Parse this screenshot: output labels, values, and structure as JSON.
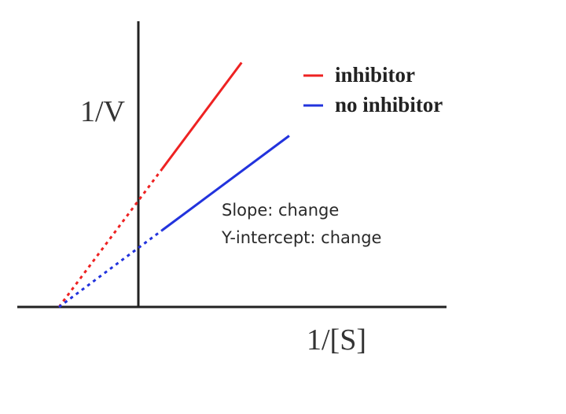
{
  "chart_data": {
    "type": "line",
    "title": "",
    "xlabel": "1/[S]",
    "ylabel": "1/V",
    "x_intercept": -1.0,
    "xlim": [
      -1.5,
      3.9
    ],
    "ylim": [
      0,
      3.6
    ],
    "grid": false,
    "legend_position": "top-right",
    "series": [
      {
        "name": "inhibitor",
        "color": "#ee2222",
        "y_intercept": 1.35,
        "slope": 1.35,
        "solid_x": [
          0.3,
          1.3
        ],
        "dotted_x": [
          -1.0,
          0.3
        ]
      },
      {
        "name": "no inhibitor",
        "color": "#2233dd",
        "y_intercept": 0.75,
        "slope": 0.75,
        "solid_x": [
          0.3,
          1.9
        ],
        "dotted_x": [
          -1.0,
          0.3
        ]
      }
    ],
    "annotations": [
      "Slope: change",
      "Y-intercept: change"
    ]
  }
}
